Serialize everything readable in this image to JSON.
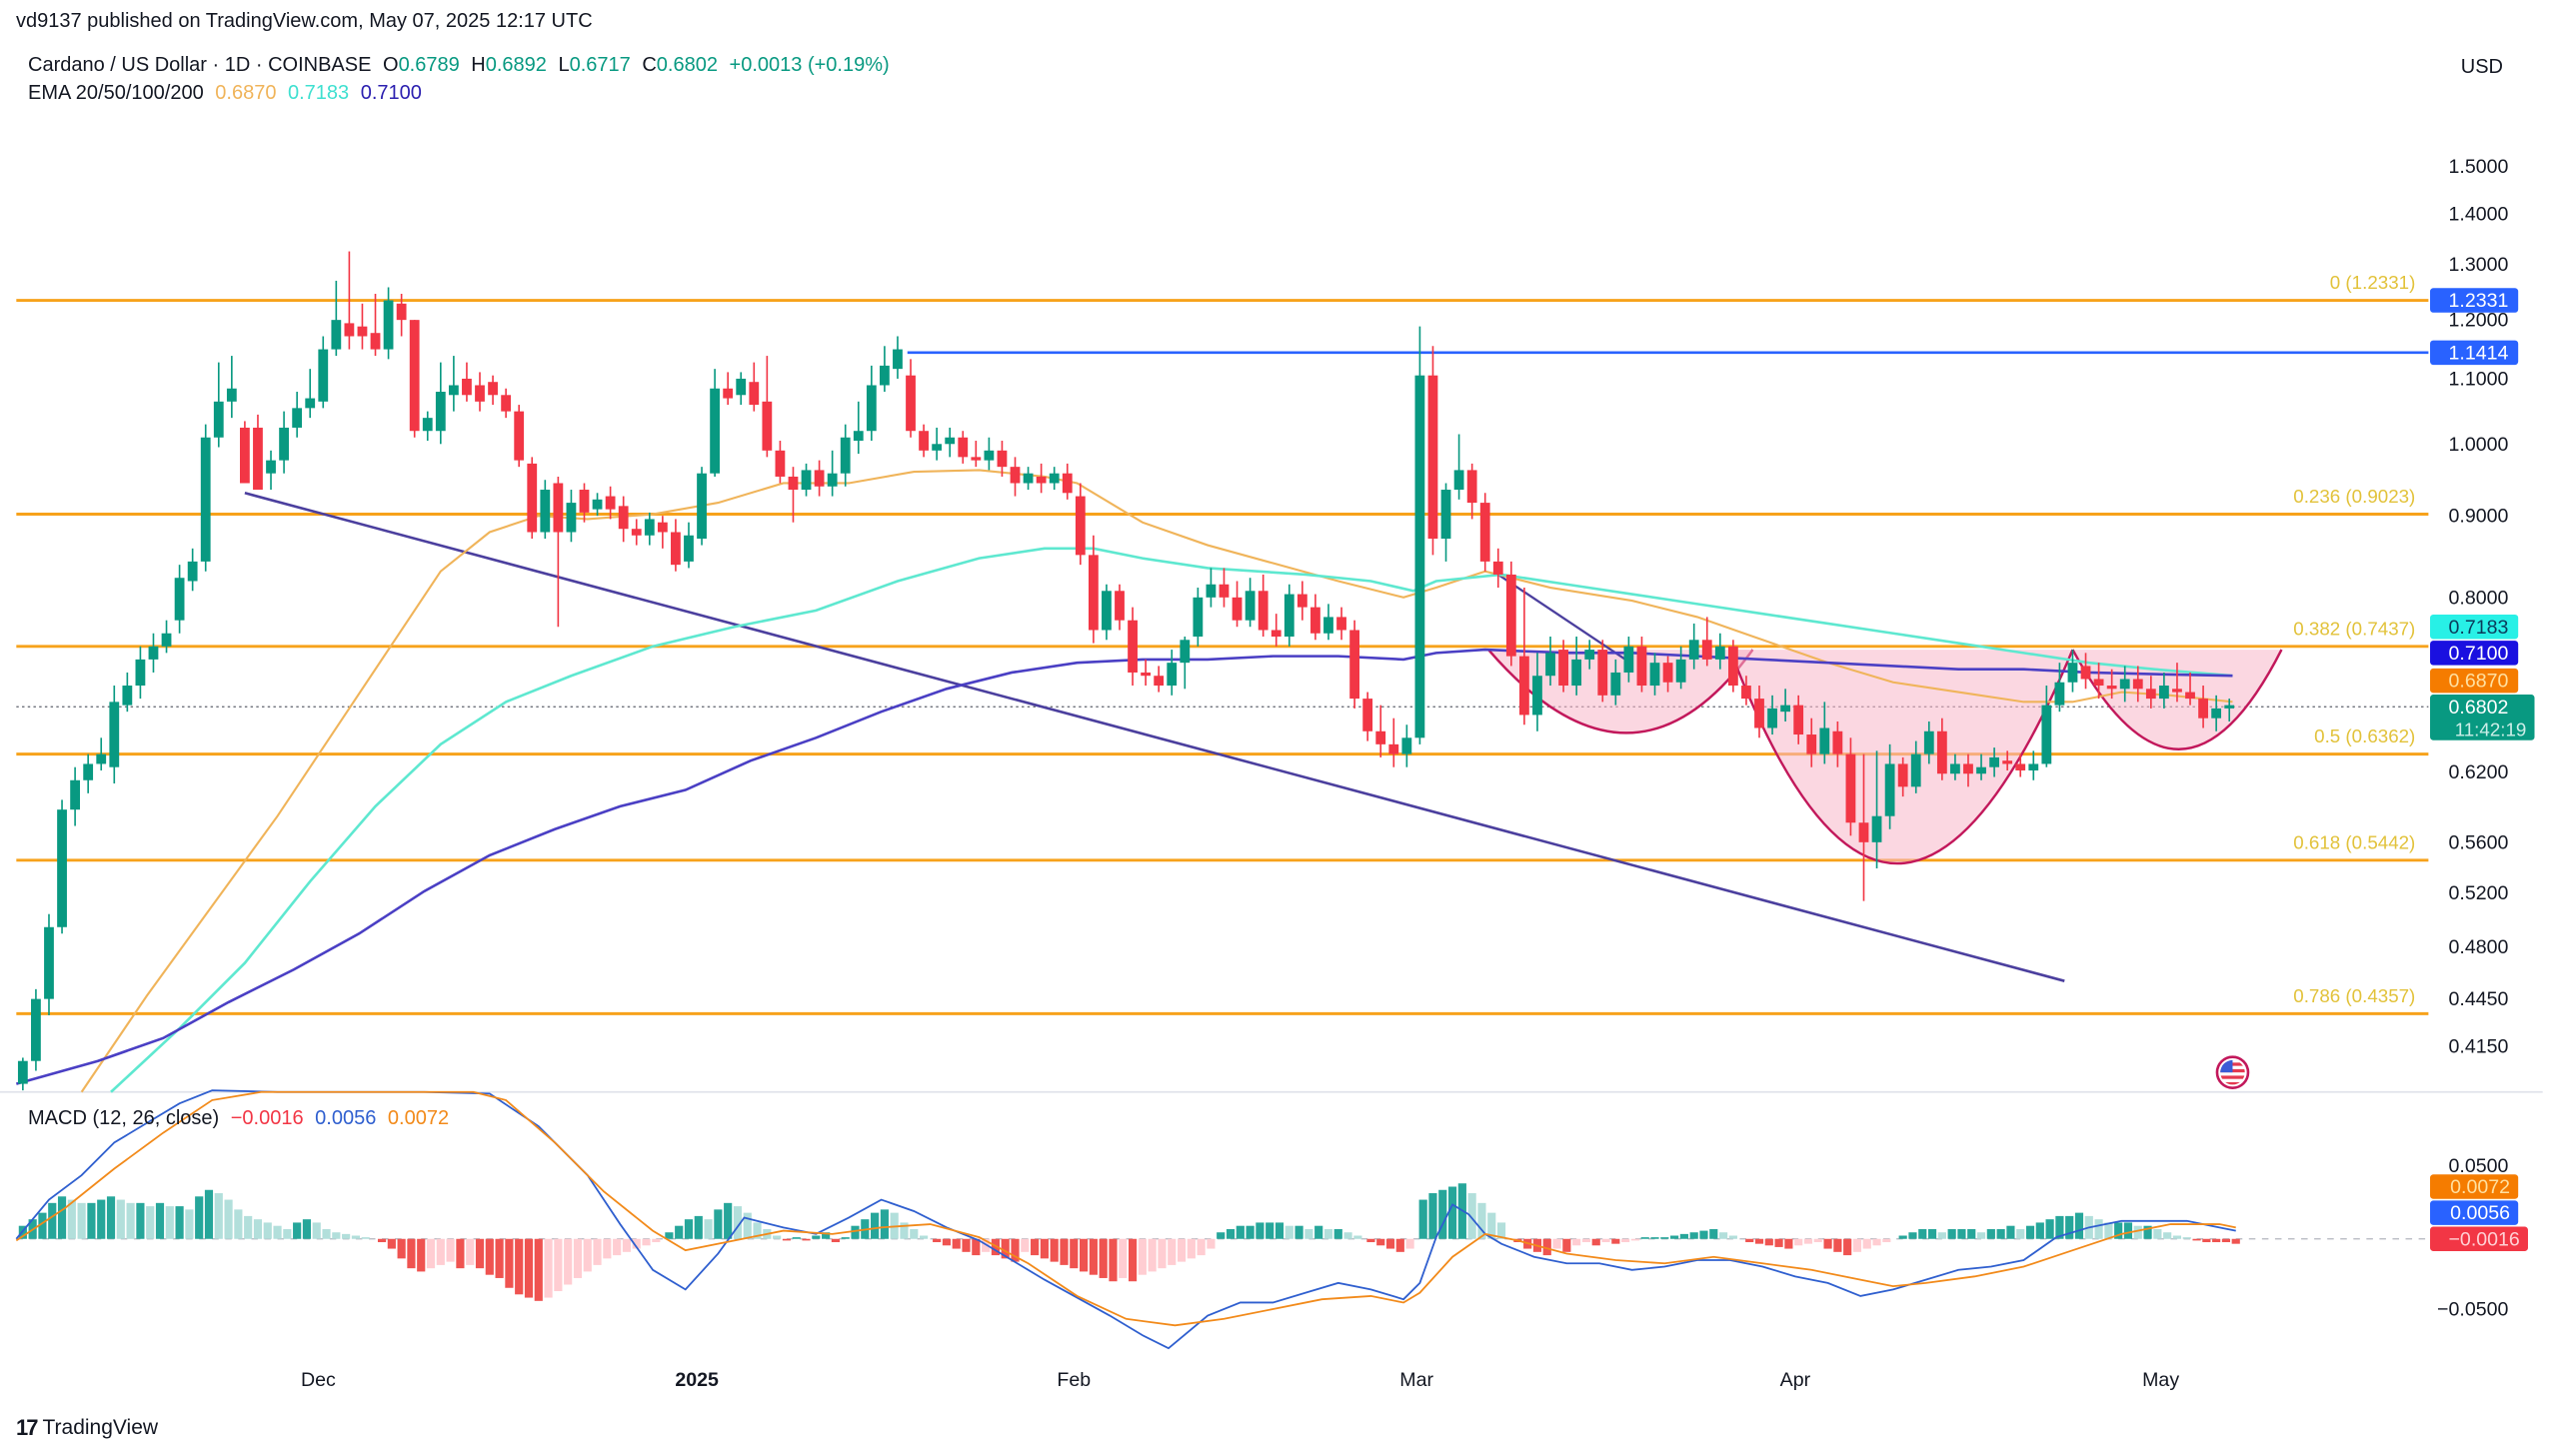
{
  "header": {
    "published": "vd9137 published on TradingView.com, May 07, 2025 12:17 UTC",
    "currency": "USD"
  },
  "symbol": {
    "name": "Cardano / US Dollar · 1D · COINBASE",
    "open_label": "O",
    "open": "0.6789",
    "high_label": "H",
    "high": "0.6892",
    "low_label": "L",
    "low": "0.6717",
    "close_label": "C",
    "close": "0.6802",
    "change": "+0.0013 (+0.19%)"
  },
  "ema": {
    "label": "EMA 20/50/100/200",
    "v1": "0.6870",
    "v2": "0.7183",
    "v3": "0.7100"
  },
  "macd": {
    "label": "MACD (12, 26, close)",
    "hist": "−0.0016",
    "macd": "0.0056",
    "signal": "0.0072"
  },
  "colors": {
    "up": "#089981",
    "down": "#f23645",
    "fib": "#f7a21b",
    "resistance": "#2962ff",
    "ema_orange": "#f0b45a",
    "ema_cyan": "#5ee8d0",
    "ema_purple": "#4a3fc4",
    "trend": "#4b3f9e",
    "cup_fill": "#f7b6c8",
    "cup_stroke": "#c2185b",
    "macd_line": "#2f5fcf",
    "signal_line": "#f28a1a"
  },
  "price_axis": {
    "ticks": [
      {
        "label": "1.5000",
        "y": 102
      },
      {
        "label": "1.4000",
        "y": 131
      },
      {
        "label": "1.3000",
        "y": 162
      },
      {
        "label": "1.2000",
        "y": 196
      },
      {
        "label": "1.1000",
        "y": 232
      },
      {
        "label": "1.0000",
        "y": 272
      },
      {
        "label": "0.9000",
        "y": 316
      },
      {
        "label": "0.8000",
        "y": 366
      },
      {
        "label": "0.6200",
        "y": 473
      },
      {
        "label": "0.5600",
        "y": 516
      },
      {
        "label": "0.5200",
        "y": 547
      },
      {
        "label": "0.4800",
        "y": 580
      },
      {
        "label": "0.4450",
        "y": 612
      },
      {
        "label": "0.4150",
        "y": 641
      }
    ],
    "badges": [
      {
        "text": "1.2331",
        "y": 184,
        "bg": "#2962ff",
        "fg": "#ffffff"
      },
      {
        "text": "1.1414",
        "y": 216,
        "bg": "#2962ff",
        "fg": "#ffffff"
      },
      {
        "text": "0.7183",
        "y": 384,
        "bg": "#28f0e6",
        "fg": "#0b3a5a"
      },
      {
        "text": "0.7100",
        "y": 400,
        "bg": "#1a10e0",
        "fg": "#ffffff"
      },
      {
        "text": "0.6870",
        "y": 417,
        "bg": "#f57c00",
        "fg": "#ffe0a0"
      },
      {
        "text": "0.6802",
        "y": 433,
        "bg": "#089981",
        "fg": "#ffffff",
        "sub": "11:42:19"
      }
    ]
  },
  "macd_axis": {
    "ticks": [
      {
        "label": "0.0500",
        "y": 714
      },
      {
        "label": "−0.0500",
        "y": 802
      }
    ],
    "badges": [
      {
        "text": "0.0072",
        "y": 727,
        "bg": "#f57c00",
        "fg": "#ffe0a0"
      },
      {
        "text": "0.0056",
        "y": 743,
        "bg": "#2962ff",
        "fg": "#ffffff"
      },
      {
        "text": "−0.0016",
        "y": 759,
        "bg": "#f23645",
        "fg": "#ffd0d4"
      }
    ]
  },
  "time_axis": [
    {
      "label": "Dec",
      "x": 195,
      "bold": false
    },
    {
      "label": "2025",
      "x": 427,
      "bold": true
    },
    {
      "label": "Feb",
      "x": 658,
      "bold": false
    },
    {
      "label": "Mar",
      "x": 868,
      "bold": false
    },
    {
      "label": "Apr",
      "x": 1100,
      "bold": false
    },
    {
      "label": "May",
      "x": 1324,
      "bold": false
    }
  ],
  "brand": "TradingView",
  "chart_data": {
    "type": "candlestick",
    "title": "Cardano / US Dollar · 1D · COINBASE",
    "ylabel": "USD",
    "y_scale": "log",
    "ylim": [
      0.4,
      1.55
    ],
    "x_range": [
      "2024-11-13",
      "2025-05-07"
    ],
    "x_ticks": [
      "Dec",
      "2025",
      "Feb",
      "Mar",
      "Apr",
      "May"
    ],
    "last": {
      "open": 0.6789,
      "high": 0.6892,
      "low": 0.6717,
      "close": 0.6802,
      "change": 0.0013,
      "change_pct": 0.19
    },
    "fib_retracement": [
      {
        "level": "0",
        "price": 1.2331
      },
      {
        "level": "0.236",
        "price": 0.9023
      },
      {
        "level": "0.382",
        "price": 0.7437
      },
      {
        "level": "0.5",
        "price": 0.6362
      },
      {
        "level": "0.618",
        "price": 0.5442
      },
      {
        "level": "0.786",
        "price": 0.4357
      }
    ],
    "horizontal_resistance": 1.1414,
    "ema": {
      "20": 0.687,
      "50": 0.7183,
      "100": 0.71
    },
    "annotations": [
      "Descending trendline from late Nov to mid-Apr",
      "Cup-and-handle pattern (Mar–May)"
    ],
    "macd": {
      "params": "12, 26, close",
      "histogram": -0.0016,
      "macd": 0.0056,
      "signal": 0.0072,
      "ylim": [
        -0.07,
        0.07
      ]
    },
    "monthly_approx_closes": [
      {
        "period": "late Nov 2024",
        "close": 0.95
      },
      {
        "period": "early Dec 2024",
        "close": 1.2
      },
      {
        "period": "late Dec 2024",
        "close": 0.85
      },
      {
        "period": "mid Jan 2025",
        "close": 1.05
      },
      {
        "period": "early Feb 2025",
        "close": 0.72
      },
      {
        "period": "early Mar 2025",
        "close": 0.95
      },
      {
        "period": "early Apr 2025",
        "close": 0.56
      },
      {
        "period": "late Apr 2025",
        "close": 0.7
      },
      {
        "period": "May 07 2025",
        "close": 0.6802
      }
    ]
  },
  "candles": [
    [
      14,
      664,
      650,
      668,
      648
    ],
    [
      22,
      650,
      612,
      656,
      606
    ],
    [
      30,
      612,
      568,
      622,
      560
    ],
    [
      38,
      568,
      496,
      572,
      490
    ],
    [
      46,
      496,
      478,
      506,
      470
    ],
    [
      54,
      478,
      468,
      486,
      462
    ],
    [
      62,
      468,
      462,
      472,
      452
    ],
    [
      70,
      470,
      430,
      480,
      420
    ],
    [
      78,
      432,
      420,
      436,
      412
    ],
    [
      86,
      420,
      404,
      428,
      396
    ],
    [
      94,
      404,
      396,
      412,
      388
    ],
    [
      102,
      396,
      388,
      400,
      380
    ],
    [
      110,
      380,
      354,
      388,
      346
    ],
    [
      118,
      356,
      344,
      362,
      336
    ],
    [
      126,
      344,
      268,
      350,
      260
    ],
    [
      134,
      268,
      246,
      274,
      222
    ],
    [
      142,
      246,
      238,
      256,
      218
    ],
    [
      150,
      262,
      296,
      266,
      258
    ],
    [
      158,
      262,
      300,
      264,
      254
    ],
    [
      166,
      290,
      282,
      300,
      276
    ],
    [
      174,
      282,
      262,
      290,
      252
    ],
    [
      182,
      262,
      250,
      268,
      240
    ],
    [
      190,
      250,
      244,
      256,
      226
    ],
    [
      198,
      246,
      214,
      250,
      206
    ],
    [
      206,
      214,
      196,
      218,
      172
    ],
    [
      214,
      198,
      206,
      214,
      154
    ],
    [
      222,
      200,
      206,
      214,
      186
    ],
    [
      230,
      204,
      214,
      218,
      180
    ],
    [
      238,
      214,
      184,
      220,
      176
    ],
    [
      246,
      186,
      196,
      206,
      180
    ],
    [
      254,
      196,
      264,
      268,
      196
    ],
    [
      262,
      264,
      256,
      270,
      252
    ],
    [
      270,
      264,
      240,
      272,
      222
    ],
    [
      278,
      242,
      236,
      252,
      218
    ],
    [
      286,
      232,
      242,
      246,
      222
    ],
    [
      294,
      236,
      246,
      252,
      228
    ],
    [
      302,
      234,
      242,
      248,
      230
    ],
    [
      310,
      242,
      252,
      256,
      238
    ],
    [
      318,
      252,
      282,
      286,
      248
    ],
    [
      326,
      284,
      326,
      330,
      280
    ],
    [
      334,
      326,
      300,
      330,
      294
    ],
    [
      342,
      296,
      326,
      384,
      292
    ],
    [
      350,
      326,
      308,
      332,
      300
    ],
    [
      358,
      300,
      314,
      320,
      296
    ],
    [
      366,
      312,
      306,
      316,
      302
    ],
    [
      374,
      304,
      312,
      318,
      298
    ],
    [
      382,
      310,
      324,
      332,
      304
    ],
    [
      390,
      324,
      328,
      334,
      318
    ],
    [
      398,
      328,
      318,
      334,
      314
    ],
    [
      406,
      320,
      326,
      336,
      316
    ],
    [
      414,
      326,
      346,
      350,
      318
    ],
    [
      422,
      344,
      328,
      348,
      320
    ],
    [
      430,
      330,
      290,
      334,
      286
    ],
    [
      438,
      290,
      238,
      292,
      226
    ],
    [
      446,
      238,
      244,
      248,
      228
    ],
    [
      454,
      242,
      232,
      248,
      228
    ],
    [
      462,
      234,
      248,
      252,
      222
    ],
    [
      470,
      246,
      276,
      280,
      218
    ],
    [
      478,
      276,
      292,
      296,
      270
    ],
    [
      486,
      292,
      300,
      320,
      286
    ],
    [
      494,
      300,
      288,
      304,
      284
    ],
    [
      502,
      288,
      298,
      304,
      282
    ],
    [
      510,
      298,
      290,
      304,
      276
    ],
    [
      518,
      290,
      268,
      298,
      260
    ],
    [
      526,
      270,
      264,
      278,
      246
    ],
    [
      534,
      264,
      236,
      270,
      224
    ],
    [
      542,
      236,
      224,
      240,
      212
    ],
    [
      550,
      226,
      214,
      232,
      206
    ],
    [
      558,
      230,
      264,
      268,
      220
    ],
    [
      566,
      264,
      276,
      280,
      260
    ],
    [
      574,
      276,
      272,
      282,
      262
    ],
    [
      582,
      272,
      268,
      280,
      262
    ],
    [
      590,
      268,
      280,
      284,
      264
    ],
    [
      598,
      280,
      282,
      286,
      270
    ],
    [
      606,
      282,
      276,
      288,
      268
    ],
    [
      614,
      276,
      286,
      292,
      270
    ],
    [
      622,
      286,
      296,
      304,
      280
    ],
    [
      630,
      296,
      290,
      300,
      286
    ],
    [
      638,
      292,
      296,
      302,
      284
    ],
    [
      646,
      296,
      290,
      300,
      286
    ],
    [
      654,
      290,
      302,
      306,
      284
    ],
    [
      662,
      304,
      340,
      346,
      296
    ],
    [
      670,
      340,
      386,
      394,
      328
    ],
    [
      678,
      386,
      362,
      392,
      358
    ],
    [
      686,
      362,
      380,
      386,
      358
    ],
    [
      694,
      380,
      412,
      420,
      372
    ],
    [
      702,
      412,
      414,
      420,
      404
    ],
    [
      710,
      414,
      420,
      424,
      408
    ],
    [
      718,
      420,
      406,
      426,
      398
    ],
    [
      726,
      406,
      392,
      422,
      390
    ],
    [
      734,
      390,
      366,
      396,
      360
    ],
    [
      742,
      366,
      358,
      372,
      348
    ],
    [
      750,
      358,
      366,
      372,
      348
    ],
    [
      758,
      366,
      380,
      384,
      356
    ],
    [
      766,
      380,
      362,
      384,
      354
    ],
    [
      774,
      362,
      386,
      390,
      352
    ],
    [
      782,
      386,
      390,
      396,
      376
    ],
    [
      790,
      390,
      364,
      396,
      358
    ],
    [
      798,
      364,
      372,
      380,
      356
    ],
    [
      806,
      372,
      388,
      392,
      364
    ],
    [
      814,
      388,
      378,
      392,
      370
    ],
    [
      822,
      378,
      386,
      392,
      372
    ],
    [
      830,
      386,
      428,
      434,
      380
    ],
    [
      838,
      428,
      448,
      454,
      424
    ],
    [
      846,
      448,
      456,
      464,
      432
    ],
    [
      854,
      456,
      462,
      470,
      440
    ],
    [
      862,
      462,
      452,
      470,
      444
    ],
    [
      870,
      452,
      230,
      456,
      200
    ],
    [
      878,
      230,
      330,
      340,
      212
    ],
    [
      886,
      330,
      300,
      344,
      296
    ],
    [
      894,
      300,
      288,
      306,
      266
    ],
    [
      902,
      288,
      308,
      318,
      284
    ],
    [
      910,
      308,
      344,
      350,
      302
    ],
    [
      918,
      344,
      352,
      360,
      336
    ],
    [
      926,
      352,
      402,
      408,
      344
    ],
    [
      934,
      402,
      438,
      444,
      360
    ],
    [
      942,
      438,
      414,
      448,
      400
    ],
    [
      950,
      414,
      400,
      420,
      390
    ],
    [
      958,
      398,
      420,
      424,
      392
    ],
    [
      966,
      420,
      404,
      426,
      390
    ],
    [
      974,
      404,
      398,
      410,
      392
    ],
    [
      982,
      398,
      426,
      430,
      392
    ],
    [
      990,
      426,
      412,
      432,
      404
    ],
    [
      998,
      412,
      396,
      418,
      390
    ],
    [
      1006,
      396,
      420,
      424,
      390
    ],
    [
      1014,
      420,
      406,
      426,
      400
    ],
    [
      1022,
      406,
      418,
      424,
      402
    ],
    [
      1030,
      418,
      404,
      422,
      396
    ],
    [
      1038,
      404,
      392,
      410,
      382
    ],
    [
      1046,
      392,
      404,
      408,
      378
    ],
    [
      1054,
      404,
      396,
      410,
      388
    ],
    [
      1062,
      396,
      420,
      424,
      392
    ],
    [
      1070,
      420,
      428,
      432,
      414
    ],
    [
      1078,
      428,
      446,
      452,
      420
    ],
    [
      1086,
      446,
      434,
      450,
      426
    ],
    [
      1094,
      436,
      432,
      442,
      422
    ],
    [
      1102,
      432,
      450,
      456,
      426
    ],
    [
      1110,
      450,
      462,
      470,
      440
    ],
    [
      1118,
      462,
      446,
      468,
      430
    ],
    [
      1126,
      448,
      462,
      470,
      442
    ],
    [
      1134,
      462,
      504,
      512,
      452
    ],
    [
      1142,
      504,
      516,
      552,
      462
    ],
    [
      1150,
      516,
      500,
      532,
      460
    ],
    [
      1158,
      500,
      468,
      508,
      456
    ],
    [
      1166,
      468,
      482,
      488,
      464
    ],
    [
      1174,
      482,
      462,
      486,
      454
    ],
    [
      1182,
      462,
      448,
      468,
      442
    ],
    [
      1190,
      448,
      474,
      478,
      440
    ],
    [
      1198,
      474,
      468,
      478,
      462
    ],
    [
      1206,
      468,
      474,
      482,
      462
    ],
    [
      1214,
      474,
      470,
      478,
      462
    ],
    [
      1222,
      470,
      464,
      476,
      458
    ],
    [
      1230,
      466,
      468,
      472,
      460
    ],
    [
      1238,
      468,
      472,
      476,
      462
    ],
    [
      1246,
      472,
      468,
      478,
      460
    ],
    [
      1254,
      468,
      432,
      470,
      420
    ],
    [
      1262,
      432,
      418,
      436,
      406
    ],
    [
      1270,
      418,
      406,
      424,
      398
    ],
    [
      1278,
      408,
      416,
      422,
      400
    ],
    [
      1286,
      416,
      420,
      428,
      406
    ],
    [
      1294,
      420,
      422,
      428,
      410
    ],
    [
      1302,
      422,
      416,
      430,
      408
    ],
    [
      1310,
      416,
      422,
      430,
      408
    ],
    [
      1318,
      422,
      428,
      434,
      414
    ],
    [
      1326,
      428,
      420,
      434,
      412
    ],
    [
      1334,
      422,
      424,
      430,
      406
    ],
    [
      1342,
      424,
      428,
      432,
      412
    ],
    [
      1350,
      428,
      440,
      446,
      420
    ],
    [
      1358,
      440,
      434,
      448,
      426
    ],
    [
      1366,
      434,
      432,
      442,
      428
    ]
  ]
}
